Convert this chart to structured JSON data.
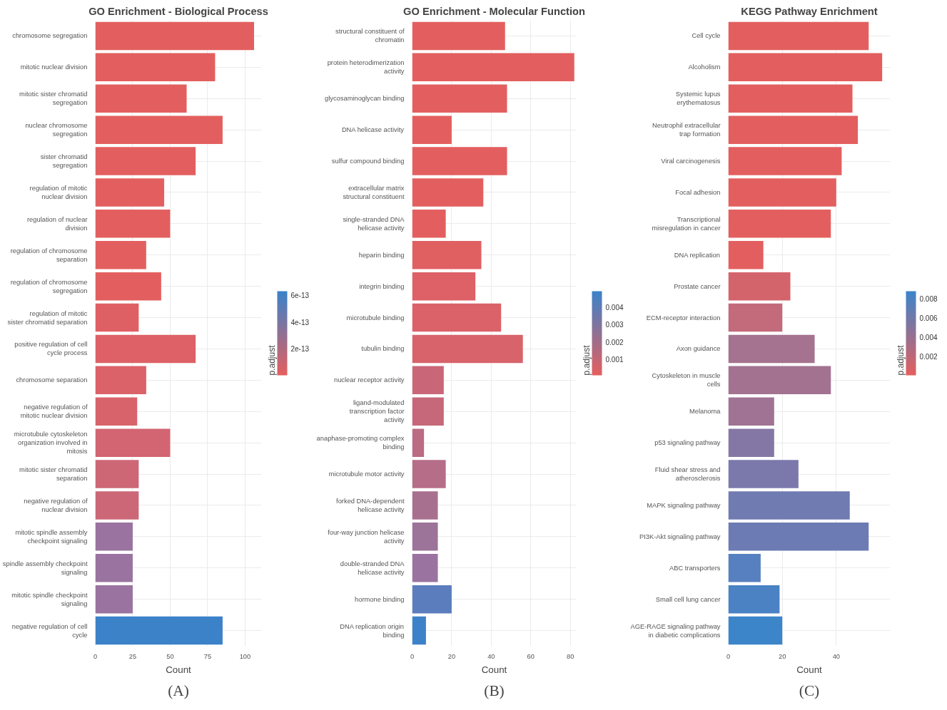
{
  "chart_data": [
    {
      "type": "bar",
      "orientation": "horizontal",
      "title": "GO Enrichment - Biological Process",
      "xlabel": "Count",
      "clabel": "p.adjust",
      "grid": true,
      "categories": [
        "chromosome segregation",
        "mitotic nuclear division",
        "mitotic sister chromatid segregation",
        "nuclear chromosome segregation",
        "sister chromatid segregation",
        "regulation of mitotic nuclear division",
        "regulation of nuclear division",
        "regulation of chromosome separation",
        "regulation of chromosome segregation",
        "regulation of mitotic sister chromatid separation",
        "positive regulation of cell cycle process",
        "chromosome separation",
        "negative regulation of mitotic nuclear division",
        "microtubule cytoskeleton organization involved in mitosis",
        "mitotic sister chromatid separation",
        "negative regulation of nuclear division",
        "mitotic spindle assembly checkpoint signaling",
        "spindle assembly checkpoint signaling",
        "mitotic spindle checkpoint signaling",
        "negative regulation of cell cycle"
      ],
      "values": [
        106,
        80,
        61,
        85,
        67,
        46,
        50,
        34,
        44,
        29,
        67,
        34,
        28,
        50,
        29,
        29,
        25,
        25,
        25,
        85
      ],
      "colors": [
        "#e35f5f",
        "#e35f5f",
        "#e35f5f",
        "#e35f5f",
        "#e35f5f",
        "#e35f5f",
        "#e35f5f",
        "#e35f5f",
        "#e35f5f",
        "#df6064",
        "#dd6166",
        "#db6268",
        "#d8636b",
        "#d26571",
        "#cd6776",
        "#cc6777",
        "#9a73a0",
        "#9a73a0",
        "#9a73a0",
        "#3b82c9"
      ],
      "xlim": [
        0,
        111
      ],
      "xticks": [
        0,
        25,
        50,
        75,
        100
      ],
      "clim": [
        0,
        6.3e-13
      ],
      "cticks": [
        {
          "value": 2e-13,
          "label": "2e-13"
        },
        {
          "value": 4e-13,
          "label": "4e-13"
        },
        {
          "value": 6e-13,
          "label": "6e-13"
        }
      ],
      "annotations": [
        "(A)"
      ]
    },
    {
      "type": "bar",
      "orientation": "horizontal",
      "title": "GO Enrichment - Molecular Function",
      "xlabel": "Count",
      "clabel": "p.adjust",
      "grid": true,
      "categories": [
        "structural constituent of chromatin",
        "protein heterodimerization activity",
        "glycosaminoglycan binding",
        "DNA helicase activity",
        "sulfur compound binding",
        "extracellular matrix structural constituent",
        "single-stranded DNA helicase activity",
        "heparin binding",
        "integrin binding",
        "microtubule binding",
        "tubulin binding",
        "nuclear receptor activity",
        "ligand-modulated transcription factor activity",
        "anaphase-promoting complex binding",
        "microtubule motor activity",
        "forked DNA-dependent helicase activity",
        "four-way junction helicase activity",
        "double-stranded DNA helicase activity",
        "hormone binding",
        "DNA replication origin binding"
      ],
      "values": [
        47,
        82,
        48,
        20,
        48,
        36,
        17,
        35,
        32,
        45,
        56,
        16,
        16,
        6,
        17,
        13,
        13,
        13,
        20,
        7
      ],
      "colors": [
        "#e35f5f",
        "#e35f5f",
        "#e35f5f",
        "#e35f5f",
        "#e35f5f",
        "#e35f5f",
        "#e35f5f",
        "#e06062",
        "#dd6166",
        "#db6268",
        "#d8636b",
        "#c96779",
        "#c66879",
        "#bb6b84",
        "#b66d88",
        "#a8708f",
        "#9c7399",
        "#9a73a0",
        "#5b7dbd",
        "#3d82c8"
      ],
      "xlim": [
        0,
        83
      ],
      "xticks": [
        0,
        20,
        40,
        60,
        80
      ],
      "clim": [
        0.0001,
        0.0049
      ],
      "cticks": [
        0.001,
        0.002,
        0.003,
        0.004
      ],
      "annotations": [
        "(B)"
      ]
    },
    {
      "type": "bar",
      "orientation": "horizontal",
      "title": "KEGG Pathway Enrichment",
      "xlabel": "Count",
      "clabel": "p.adjust",
      "grid": true,
      "categories": [
        "Cell cycle",
        "Alcoholism",
        "Systemic lupus erythematosus",
        "Neutrophil extracellular trap formation",
        "Viral carcinogenesis",
        "Focal adhesion",
        "Transcriptional misregulation in cancer",
        "DNA replication",
        "Prostate cancer",
        "ECM-receptor interaction",
        "Axon guidance",
        "Cytoskeleton in muscle cells",
        "Melanoma",
        "p53 signaling pathway",
        "Fluid shear stress and atherosclerosis",
        "MAPK signaling pathway",
        "PI3K-Akt signaling pathway",
        "ABC transporters",
        "Small cell lung cancer",
        "AGE-RAGE signaling pathway in diabetic complications"
      ],
      "values": [
        52,
        57,
        46,
        48,
        42,
        40,
        38,
        13,
        23,
        20,
        32,
        38,
        17,
        17,
        26,
        45,
        52,
        12,
        19,
        20
      ],
      "colors": [
        "#e35f5f",
        "#e35f5f",
        "#e35f5f",
        "#e35f5f",
        "#e35f5f",
        "#e35f5f",
        "#e35f5f",
        "#e35f5f",
        "#d4646c",
        "#c36a7b",
        "#a5728f",
        "#a37291",
        "#a07293",
        "#8577a5",
        "#7b79ab",
        "#6f7bb1",
        "#6c7bb3",
        "#5680bf",
        "#4a82c4",
        "#3d85c9"
      ],
      "xlim": [
        0,
        60
      ],
      "xticks": [
        0,
        20,
        40
      ],
      "clim": [
        0,
        0.0088
      ],
      "cticks": [
        0.002,
        0.004,
        0.006,
        0.008
      ],
      "annotations": [
        "(C)"
      ]
    }
  ]
}
